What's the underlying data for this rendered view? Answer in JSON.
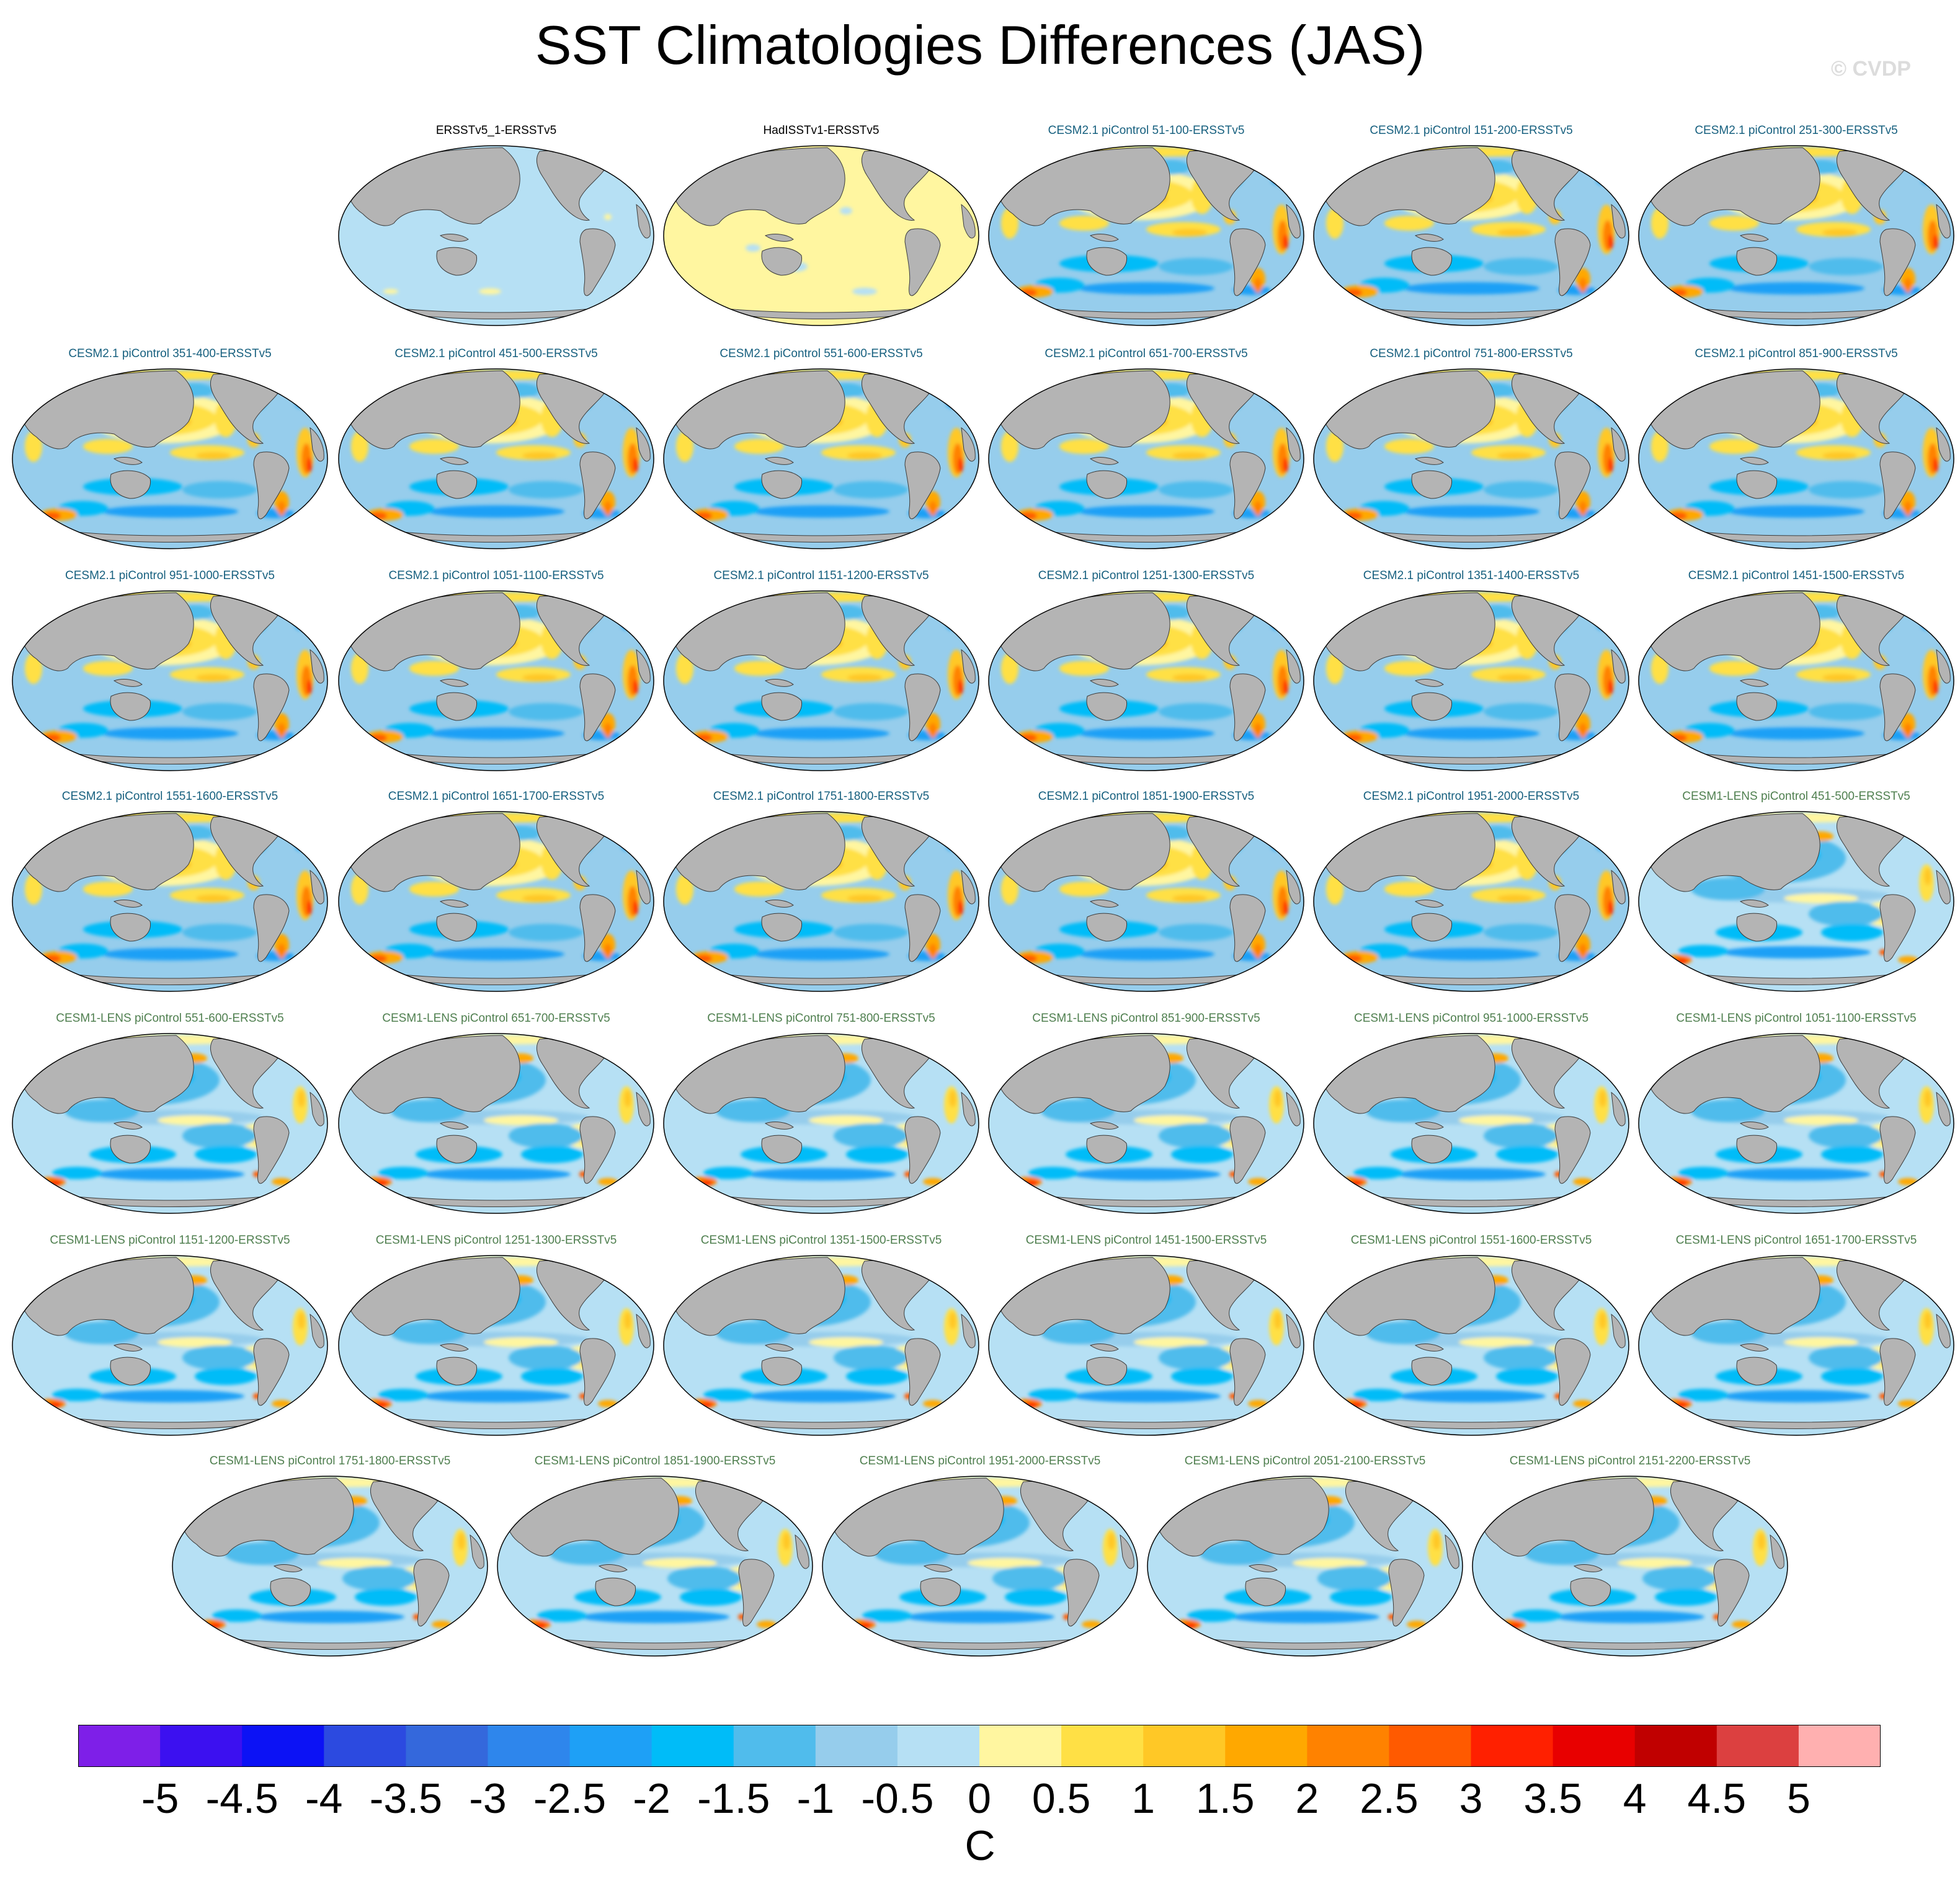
{
  "title": "SST Climatologies Differences (JAS)",
  "watermark": "© CVDP",
  "panels": [
    {
      "title": "ERSSTv5_1-ERSSTv5",
      "group": "obs",
      "pattern": "flat_neg"
    },
    {
      "title": "HadISSTv1-ERSSTv5",
      "group": "obs",
      "pattern": "flat_pos"
    },
    {
      "title": "CESM2.1 piControl 51-100-ERSSTv5",
      "group": "cesm2",
      "pattern": "cesm2"
    },
    {
      "title": "CESM2.1 piControl 151-200-ERSSTv5",
      "group": "cesm2",
      "pattern": "cesm2"
    },
    {
      "title": "CESM2.1 piControl 251-300-ERSSTv5",
      "group": "cesm2",
      "pattern": "cesm2"
    },
    {
      "title": "CESM2.1 piControl 351-400-ERSSTv5",
      "group": "cesm2",
      "pattern": "cesm2"
    },
    {
      "title": "CESM2.1 piControl 451-500-ERSSTv5",
      "group": "cesm2",
      "pattern": "cesm2"
    },
    {
      "title": "CESM2.1 piControl 551-600-ERSSTv5",
      "group": "cesm2",
      "pattern": "cesm2"
    },
    {
      "title": "CESM2.1 piControl 651-700-ERSSTv5",
      "group": "cesm2",
      "pattern": "cesm2"
    },
    {
      "title": "CESM2.1 piControl 751-800-ERSSTv5",
      "group": "cesm2",
      "pattern": "cesm2"
    },
    {
      "title": "CESM2.1 piControl 851-900-ERSSTv5",
      "group": "cesm2",
      "pattern": "cesm2"
    },
    {
      "title": "CESM2.1 piControl 951-1000-ERSSTv5",
      "group": "cesm2",
      "pattern": "cesm2"
    },
    {
      "title": "CESM2.1 piControl 1051-1100-ERSSTv5",
      "group": "cesm2",
      "pattern": "cesm2"
    },
    {
      "title": "CESM2.1 piControl 1151-1200-ERSSTv5",
      "group": "cesm2",
      "pattern": "cesm2"
    },
    {
      "title": "CESM2.1 piControl 1251-1300-ERSSTv5",
      "group": "cesm2",
      "pattern": "cesm2"
    },
    {
      "title": "CESM2.1 piControl 1351-1400-ERSSTv5",
      "group": "cesm2",
      "pattern": "cesm2"
    },
    {
      "title": "CESM2.1 piControl 1451-1500-ERSSTv5",
      "group": "cesm2",
      "pattern": "cesm2"
    },
    {
      "title": "CESM2.1 piControl 1551-1600-ERSSTv5",
      "group": "cesm2",
      "pattern": "cesm2"
    },
    {
      "title": "CESM2.1 piControl 1651-1700-ERSSTv5",
      "group": "cesm2",
      "pattern": "cesm2"
    },
    {
      "title": "CESM2.1 piControl 1751-1800-ERSSTv5",
      "group": "cesm2",
      "pattern": "cesm2"
    },
    {
      "title": "CESM2.1 piControl 1851-1900-ERSSTv5",
      "group": "cesm2",
      "pattern": "cesm2"
    },
    {
      "title": "CESM2.1 piControl 1951-2000-ERSSTv5",
      "group": "cesm2",
      "pattern": "cesm2"
    },
    {
      "title": "CESM1-LENS piControl 451-500-ERSSTv5",
      "group": "cesm1",
      "pattern": "cesm1"
    },
    {
      "title": "CESM1-LENS piControl 551-600-ERSSTv5",
      "group": "cesm1",
      "pattern": "cesm1"
    },
    {
      "title": "CESM1-LENS piControl 651-700-ERSSTv5",
      "group": "cesm1",
      "pattern": "cesm1"
    },
    {
      "title": "CESM1-LENS piControl 751-800-ERSSTv5",
      "group": "cesm1",
      "pattern": "cesm1"
    },
    {
      "title": "CESM1-LENS piControl 851-900-ERSSTv5",
      "group": "cesm1",
      "pattern": "cesm1"
    },
    {
      "title": "CESM1-LENS piControl 951-1000-ERSSTv5",
      "group": "cesm1",
      "pattern": "cesm1"
    },
    {
      "title": "CESM1-LENS piControl 1051-1100-ERSSTv5",
      "group": "cesm1",
      "pattern": "cesm1"
    },
    {
      "title": "CESM1-LENS piControl 1151-1200-ERSSTv5",
      "group": "cesm1",
      "pattern": "cesm1"
    },
    {
      "title": "CESM1-LENS piControl 1251-1300-ERSSTv5",
      "group": "cesm1",
      "pattern": "cesm1"
    },
    {
      "title": "CESM1-LENS piControl 1351-1500-ERSSTv5",
      "group": "cesm1",
      "pattern": "cesm1"
    },
    {
      "title": "CESM1-LENS piControl 1451-1500-ERSSTv5",
      "group": "cesm1",
      "pattern": "cesm1"
    },
    {
      "title": "CESM1-LENS piControl 1551-1600-ERSSTv5",
      "group": "cesm1",
      "pattern": "cesm1"
    },
    {
      "title": "CESM1-LENS piControl 1651-1700-ERSSTv5",
      "group": "cesm1",
      "pattern": "cesm1"
    },
    {
      "title": "CESM1-LENS piControl 1751-1800-ERSSTv5",
      "group": "cesm1",
      "pattern": "cesm1"
    },
    {
      "title": "CESM1-LENS piControl 1851-1900-ERSSTv5",
      "group": "cesm1",
      "pattern": "cesm1"
    },
    {
      "title": "CESM1-LENS piControl 1951-2000-ERSSTv5",
      "group": "cesm1",
      "pattern": "cesm1"
    },
    {
      "title": "CESM1-LENS piControl 2051-2100-ERSSTv5",
      "group": "cesm1",
      "pattern": "cesm1"
    },
    {
      "title": "CESM1-LENS piControl 2151-2200-ERSSTv5",
      "group": "cesm1",
      "pattern": "cesm1"
    }
  ],
  "colorbar": {
    "unit": "C",
    "tick_labels": [
      "-5",
      "-4.5",
      "-4",
      "-3.5",
      "-3",
      "-2.5",
      "-2",
      "-1.5",
      "-1",
      "-0.5",
      "0",
      "0.5",
      "1",
      "1.5",
      "2",
      "2.5",
      "3",
      "3.5",
      "4",
      "4.5",
      "5"
    ],
    "colors": [
      "#7e1fe8",
      "#3c10f0",
      "#0c12f5",
      "#2c4ae0",
      "#3468dc",
      "#2e86ec",
      "#1ea0f6",
      "#00bcf8",
      "#50bcec",
      "#96cdec",
      "#b6e0f4",
      "#fff6a0",
      "#ffe045",
      "#ffc826",
      "#ffa800",
      "#ff8200",
      "#ff5a00",
      "#ff2000",
      "#e80000",
      "#c00000",
      "#dc4040",
      "#ffb0b0"
    ]
  },
  "map_style": {
    "land": "#b4b4b4",
    "coast": "#3c3c3c"
  }
}
